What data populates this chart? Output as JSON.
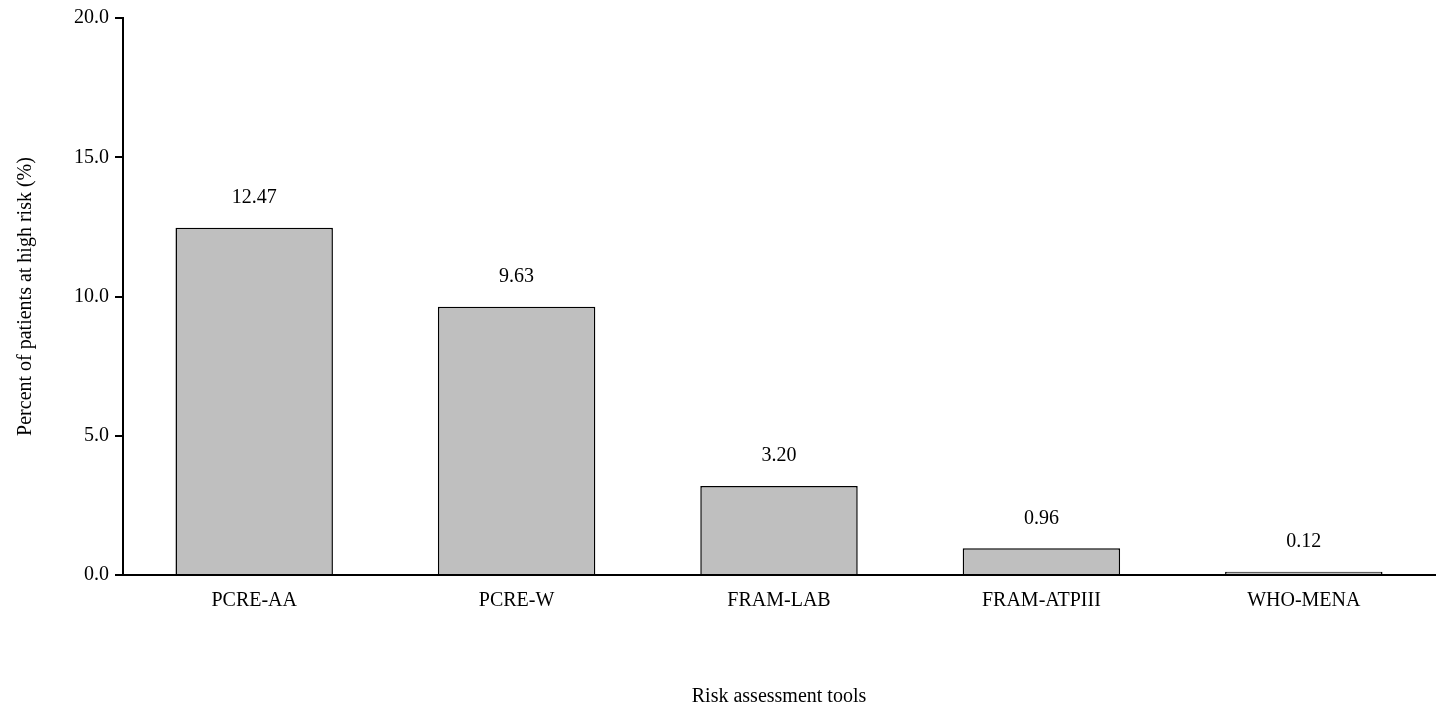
{
  "chart_data": {
    "type": "bar",
    "xlabel": "Risk assessment tools",
    "ylabel": "Percent of patients at high risk (%)",
    "categories": [
      "PCRE-AA",
      "PCRE-W",
      "FRAM-LAB",
      "FRAM-ATPIII",
      "WHO-MENA"
    ],
    "values": [
      12.47,
      9.63,
      3.2,
      0.96,
      0.12
    ],
    "value_labels": [
      "12.47",
      "9.63",
      "3.20",
      "0.96",
      "0.12"
    ],
    "color": "#bfbfbf",
    "ylim": [
      0,
      20
    ],
    "yticks": [
      {
        "value": 0,
        "label": "0.0"
      },
      {
        "value": 5,
        "label": "5.0"
      },
      {
        "value": 10,
        "label": "10.0"
      },
      {
        "value": 15,
        "label": "15.0"
      },
      {
        "value": 20,
        "label": "20.0"
      }
    ],
    "grid": false,
    "legend": false
  }
}
